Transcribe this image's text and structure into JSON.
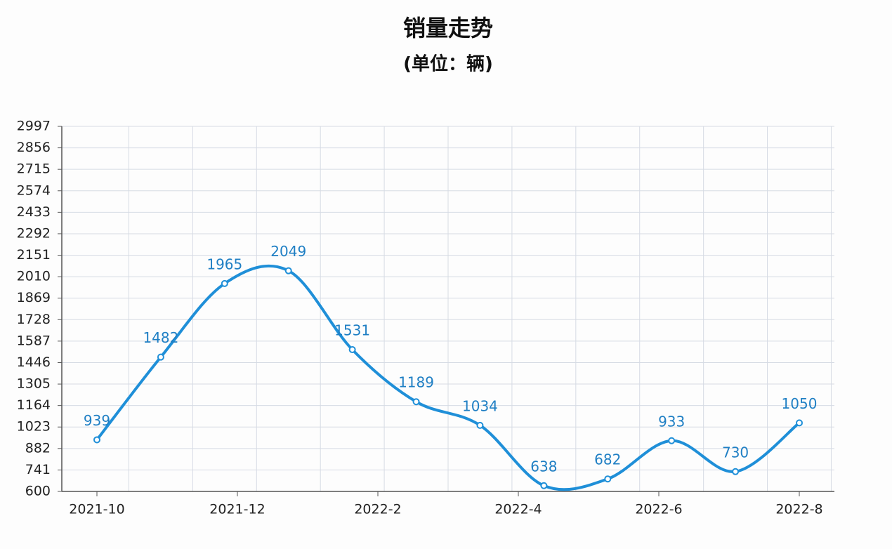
{
  "chart_data": {
    "type": "line",
    "title": "销量走势",
    "subtitle": "(单位：辆)",
    "categories": [
      null,
      null,
      null,
      null,
      null,
      null,
      null,
      null,
      null,
      null,
      null,
      null
    ],
    "xticks": [
      "2021-10",
      "2021-12",
      "2022-2",
      "2022-4",
      "2022-6",
      "2022-8"
    ],
    "series": [
      {
        "name": null,
        "color": "#1f8fd8",
        "values": [
          939,
          1482,
          1965,
          2049,
          1531,
          1189,
          1034,
          638,
          682,
          933,
          730,
          1050
        ]
      }
    ],
    "ylim": [
      600,
      2997
    ],
    "yticks": [
      600,
      741,
      882,
      1023,
      1164,
      1305,
      1446,
      1587,
      1728,
      1869,
      2010,
      2151,
      2292,
      2433,
      2574,
      2715,
      2856,
      2997
    ],
    "grid": true
  }
}
